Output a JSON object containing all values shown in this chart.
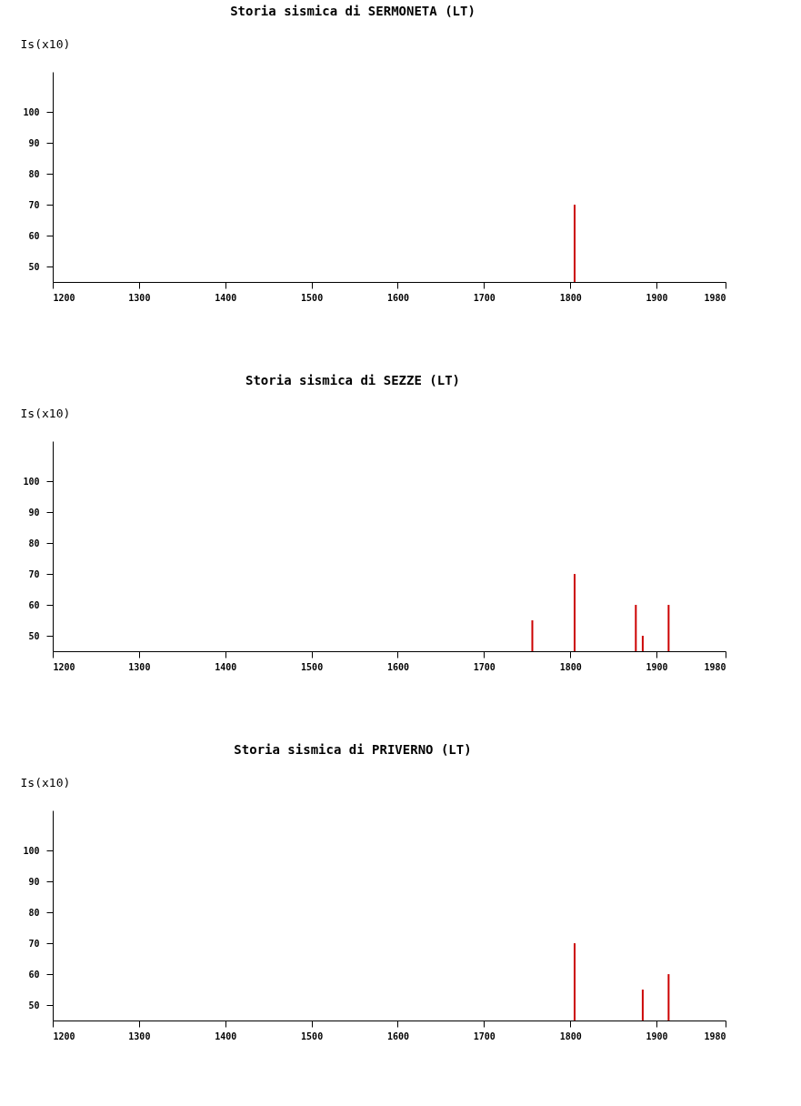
{
  "chart_data": [
    {
      "type": "bar",
      "title": "Storia sismica di  SERMONETA (LT)",
      "ylabel": "Is(x10)",
      "x": [
        1805
      ],
      "series": [
        {
          "color": "#cc0000",
          "values": [
            70
          ]
        }
      ],
      "xlim": [
        1200,
        1980
      ],
      "xticks": [
        1200,
        1300,
        1400,
        1500,
        1600,
        1700,
        1800,
        1900,
        1980
      ],
      "ylim": [
        45,
        113
      ],
      "yticks": [
        50,
        60,
        70,
        80,
        90,
        100
      ],
      "grid": false
    },
    {
      "type": "bar",
      "title": "Storia sismica di  SEZZE (LT)",
      "ylabel": "Is(x10)",
      "x": [
        1756,
        1805,
        1876,
        1884,
        1914
      ],
      "series": [
        {
          "color": "#cc0000",
          "values": [
            55,
            70,
            60,
            50,
            60
          ]
        }
      ],
      "xlim": [
        1200,
        1980
      ],
      "xticks": [
        1200,
        1300,
        1400,
        1500,
        1600,
        1700,
        1800,
        1900,
        1980
      ],
      "ylim": [
        45,
        113
      ],
      "yticks": [
        50,
        60,
        70,
        80,
        90,
        100
      ],
      "grid": false
    },
    {
      "type": "bar",
      "title": "Storia sismica di  PRIVERNO (LT)",
      "ylabel": "Is(x10)",
      "x": [
        1805,
        1884,
        1914
      ],
      "series": [
        {
          "color": "#cc0000",
          "values": [
            70,
            55,
            60
          ]
        }
      ],
      "xlim": [
        1200,
        1980
      ],
      "xticks": [
        1200,
        1300,
        1400,
        1500,
        1600,
        1700,
        1800,
        1900,
        1980
      ],
      "ylim": [
        45,
        113
      ],
      "yticks": [
        50,
        60,
        70,
        80,
        90,
        100
      ],
      "grid": false
    }
  ]
}
